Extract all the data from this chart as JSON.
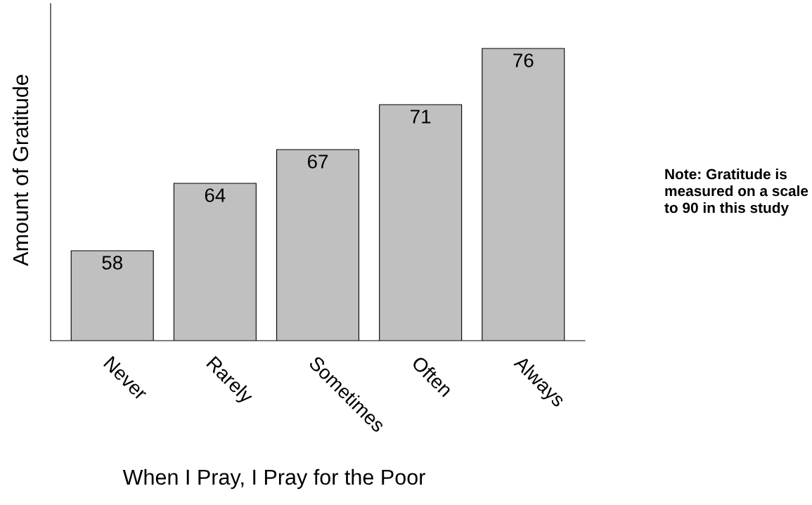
{
  "chart_data": {
    "type": "bar",
    "xlabel": "When I Pray, I Pray for the Poor",
    "ylabel": "Amount of Gratitude",
    "categories": [
      "Never",
      "Rarely",
      "Sometimes",
      "Often",
      "Always"
    ],
    "values": [
      58,
      64,
      67,
      71,
      76
    ],
    "color": "#c0c0c0",
    "ylim": [
      50,
      80
    ],
    "data_labels": true,
    "grid": false,
    "legend": false,
    "annotations": [
      "Note: Gratitude is measured on a scale to 90 in this study"
    ]
  }
}
